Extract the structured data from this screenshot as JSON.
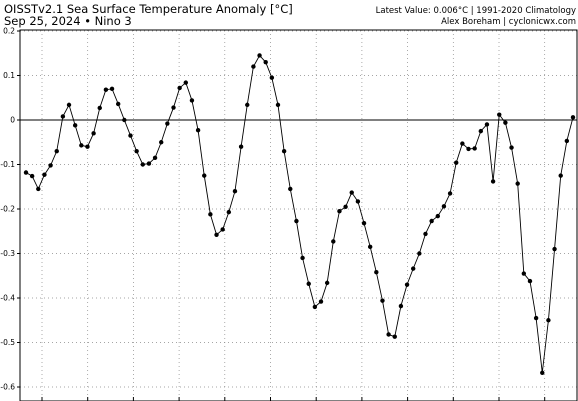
{
  "chart_data": {
    "type": "line",
    "title": "OISSTv2.1 Sea Surface Temperature Anomaly [°C]",
    "subtitle": "Sep 25, 2024  •  Nino 3",
    "top_right_line1": "Latest Value: 0.006°C | 1991-2020 Climatology",
    "top_right_line2": "Alex Boreham | cyclonicwx.com",
    "ylim": [
      -0.64,
      0.2
    ],
    "yticks": [
      0.2,
      0.1,
      0.0,
      -0.1,
      -0.2,
      -0.3,
      -0.4,
      -0.5,
      -0.6
    ],
    "ytick_labels": [
      "0.2",
      "0.1",
      "0",
      "-0.1",
      "-0.2",
      "-0.3",
      "-0.4",
      "-0.5",
      "-0.6"
    ],
    "grid": true,
    "zero_line": true,
    "line_color": "#000000",
    "series": [
      {
        "values": [
          -0.118,
          -0.126,
          -0.155,
          -0.123,
          -0.102,
          -0.07,
          0.008,
          0.034,
          -0.012,
          -0.057,
          -0.06,
          -0.03,
          0.027,
          0.068,
          0.07,
          0.036,
          0.0,
          -0.035,
          -0.07,
          -0.1,
          -0.098,
          -0.085,
          -0.05,
          -0.008,
          0.028,
          0.072,
          0.084,
          0.044,
          -0.023,
          -0.125,
          -0.212,
          -0.258,
          -0.246,
          -0.207,
          -0.16,
          -0.06,
          0.034,
          0.12,
          0.145,
          0.13,
          0.095,
          0.034,
          -0.07,
          -0.155,
          -0.227,
          -0.31,
          -0.368,
          -0.42,
          -0.408,
          -0.366,
          -0.273,
          -0.205,
          -0.195,
          -0.163,
          -0.183,
          -0.232,
          -0.285,
          -0.342,
          -0.406,
          -0.482,
          -0.487,
          -0.418,
          -0.37,
          -0.334,
          -0.3,
          -0.256,
          -0.227,
          -0.216,
          -0.194,
          -0.165,
          -0.096,
          -0.053,
          -0.065,
          -0.064,
          -0.025,
          -0.01,
          -0.138,
          0.012,
          -0.006,
          -0.062,
          -0.143,
          -0.345,
          -0.362,
          -0.445,
          -0.568,
          -0.45,
          -0.29,
          -0.125,
          -0.047,
          0.006
        ]
      }
    ]
  }
}
